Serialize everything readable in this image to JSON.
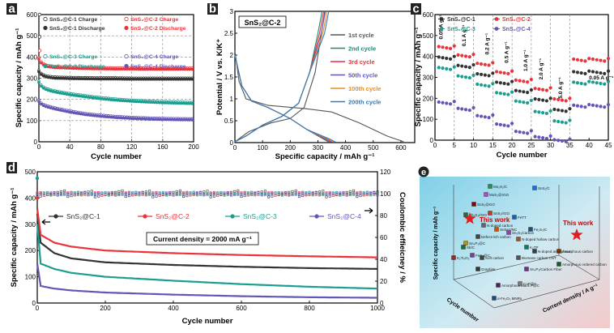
{
  "colors": {
    "c1": "#333333",
    "c2": "#e8343a",
    "c3": "#1a9e8f",
    "c4": "#6257b7",
    "axis2": "#e8343a"
  },
  "chart_data": [
    {
      "panel": "a",
      "type": "scatter",
      "xlabel": "Cycle number",
      "ylabel": "Specific capacity / mAh g⁻¹",
      "xlim": [
        0,
        200
      ],
      "ylim": [
        0,
        600
      ],
      "xticks": [
        0,
        40,
        80,
        120,
        160,
        200
      ],
      "yticks": [
        0,
        100,
        200,
        300,
        400,
        500,
        600
      ],
      "grid": true,
      "legend": [
        "SnS₂@C-1 Charge",
        "SnS₂@C-2 Charge",
        "SnS₂@C-1 Discharge",
        "SnS₂@C-2 Discharge",
        "SnS₂@C-3 Charge",
        "SnS₂@C-4 Charge",
        "SnS₂@C-3 Discharge",
        "SnS₂@C-4 Discharge"
      ],
      "series": [
        {
          "name": "SnS₂@C-1",
          "color_key": "c1",
          "x": [
            0,
            2,
            5,
            10,
            20,
            40,
            60,
            80,
            100,
            120,
            140,
            160,
            180,
            200
          ],
          "y": [
            330,
            320,
            312,
            305,
            300,
            298,
            297,
            296,
            296,
            295,
            295,
            295,
            295,
            295
          ]
        },
        {
          "name": "SnS₂@C-2",
          "color_key": "c2",
          "x": [
            0,
            2,
            5,
            10,
            20,
            40,
            60,
            80,
            100,
            120,
            140,
            160,
            180,
            200
          ],
          "y": [
            390,
            375,
            365,
            355,
            350,
            347,
            345,
            344,
            343,
            343,
            342,
            342,
            342,
            342
          ]
        },
        {
          "name": "SnS₂@C-3",
          "color_key": "c3",
          "x": [
            0,
            2,
            5,
            10,
            20,
            40,
            60,
            80,
            100,
            120,
            140,
            160,
            180,
            200
          ],
          "y": [
            280,
            265,
            255,
            245,
            235,
            222,
            212,
            203,
            196,
            191,
            187,
            184,
            182,
            180
          ]
        },
        {
          "name": "SnS₂@C-4",
          "color_key": "c4",
          "x": [
            0,
            2,
            5,
            10,
            20,
            40,
            60,
            80,
            100,
            120,
            140,
            160,
            180,
            200
          ],
          "y": [
            190,
            180,
            172,
            165,
            155,
            140,
            128,
            120,
            114,
            110,
            107,
            105,
            104,
            103
          ]
        }
      ],
      "first_points": [
        {
          "y": 600,
          "c": "c1"
        },
        {
          "y": 495,
          "c": "c1"
        },
        {
          "y": 430,
          "c": "c2"
        }
      ]
    },
    {
      "panel": "b",
      "type": "line",
      "label": "SnS₂@C-2",
      "xlabel": "Specific capacity / mAh g⁻¹",
      "ylabel": "Potential / V vs. K/K⁺",
      "xlim": [
        0,
        650
      ],
      "ylim": [
        0,
        3.0
      ],
      "xticks": [
        0,
        100,
        200,
        300,
        400,
        500,
        600
      ],
      "yticks": [
        0.0,
        0.5,
        1.0,
        1.5,
        2.0,
        2.5,
        3.0
      ],
      "legend": [
        {
          "name": "1st cycle",
          "color": "#555555"
        },
        {
          "name": "2nd cycle",
          "color": "#1a8c7a"
        },
        {
          "name": "3rd cycle",
          "color": "#e8343a"
        },
        {
          "name": "50th cycle",
          "color": "#6257b7"
        },
        {
          "name": "100th cycle",
          "color": "#f08a1e"
        },
        {
          "name": "200th cycle",
          "color": "#2a7dc4"
        }
      ]
    },
    {
      "panel": "c",
      "type": "scatter",
      "xlabel": "Cycle number",
      "ylabel": "Specific capacity / mAh g⁻¹",
      "xlim": [
        0,
        45
      ],
      "ylim": [
        0,
        600
      ],
      "xticks": [
        0,
        5,
        10,
        15,
        20,
        25,
        30,
        35,
        40,
        45
      ],
      "yticks": [
        0,
        100,
        200,
        300,
        400,
        500,
        600
      ],
      "rate_labels": [
        "0.05 A g⁻¹",
        "0.1 A g⁻¹",
        "0.2 A g⁻¹",
        "0.5 A g⁻¹",
        "1.0 A g⁻¹",
        "2.0 A g⁻¹",
        "5.0 A g⁻¹",
        "0.05 A g⁻¹"
      ],
      "legend": [
        "SnS₂@C-1",
        "SnS₂@C-2",
        "SnS₂@C-3",
        "SnS₂@C-4"
      ],
      "series": [
        {
          "name": "SnS₂@C-1",
          "color_key": "c1",
          "levels": [
            400,
            360,
            320,
            280,
            240,
            200,
            150,
            330
          ]
        },
        {
          "name": "SnS₂@C-2",
          "color_key": "c2",
          "levels": [
            450,
            410,
            370,
            330,
            290,
            250,
            200,
            390
          ]
        },
        {
          "name": "SnS₂@C-3",
          "color_key": "c3",
          "levels": [
            350,
            310,
            270,
            230,
            190,
            140,
            95,
            280
          ]
        },
        {
          "name": "SnS₂@C-4",
          "color_key": "c4",
          "levels": [
            185,
            155,
            120,
            80,
            45,
            20,
            5,
            170
          ]
        }
      ]
    },
    {
      "panel": "d",
      "type": "scatter",
      "xlabel": "Cycle number",
      "ylabel": "Specific capacity / mAh g⁻¹",
      "ylabel2": "Coulombic effieicney / %",
      "xlim": [
        0,
        1000
      ],
      "ylim": [
        0,
        500
      ],
      "y2lim": [
        0,
        120
      ],
      "xticks": [
        0,
        200,
        400,
        600,
        800,
        1000
      ],
      "yticks": [
        0,
        100,
        200,
        300,
        400,
        500
      ],
      "y2ticks": [
        0,
        20,
        40,
        60,
        80,
        100,
        120
      ],
      "annotation": "Current density = 2000 mA g⁻¹",
      "legend": [
        "SnS₂@C-1",
        "SnS₂@C-2",
        "SnS₂@C-3",
        "SnS₂@C-4"
      ],
      "series": [
        {
          "name": "SnS₂@C-1",
          "color_key": "c1",
          "x": [
            0,
            10,
            50,
            100,
            200,
            400,
            600,
            800,
            1000
          ],
          "y": [
            340,
            230,
            190,
            170,
            155,
            145,
            138,
            133,
            130
          ]
        },
        {
          "name": "SnS₂@C-2",
          "color_key": "c2",
          "x": [
            0,
            10,
            50,
            100,
            200,
            400,
            600,
            800,
            1000
          ],
          "y": [
            360,
            260,
            230,
            215,
            200,
            190,
            183,
            178,
            174
          ]
        },
        {
          "name": "SnS₂@C-3",
          "color_key": "c3",
          "x": [
            0,
            10,
            50,
            100,
            200,
            400,
            600,
            800,
            1000
          ],
          "y": [
            300,
            150,
            130,
            115,
            100,
            85,
            72,
            62,
            55
          ]
        },
        {
          "name": "SnS₂@C-4",
          "color_key": "c4",
          "x": [
            0,
            10,
            50,
            100,
            200,
            400,
            600,
            800,
            1000
          ],
          "y": [
            150,
            65,
            55,
            48,
            40,
            32,
            26,
            22,
            20
          ]
        }
      ],
      "efficiency": 100
    },
    {
      "panel": "e",
      "type": "scatter3d",
      "xlabel": "Cycle number",
      "ylabel": "Current density / A g⁻¹",
      "zlabel": "Specific capacity / mAh g⁻¹",
      "highlights": [
        "This work",
        "This work"
      ],
      "points": [
        "Mo₂S₂/C",
        "MoS₂@rGO",
        "SnS₂/C",
        "SnS₂@GO",
        "Sb₂S₃/rGO",
        "SnS₂/rGO",
        "FeTT",
        "N-doped carbon",
        "SnSe2/NC",
        "Sn₂S₃/carbon",
        "Defect-rich carbon",
        "N-doped hollow carbon",
        "Fe₂S₃/C",
        "FeS₂@C",
        "K₂TP",
        "Sn₄P₃@C",
        "Biomass carbon CNT",
        "Amorphous carbon",
        "Soft carbon",
        "Graphite",
        "N-doped amorphous",
        "Sn₄P₃/Carbon Fiber",
        "Amorphous ordered carbon",
        "Amorphous black P@C",
        "CoP@C",
        "α-Fe₂O₃ MNRs",
        "K₂Ti₄O₉",
        "Sb/C"
      ]
    }
  ],
  "panels": {
    "a": "a",
    "b": "b",
    "c": "c",
    "d": "d",
    "e": "e"
  }
}
